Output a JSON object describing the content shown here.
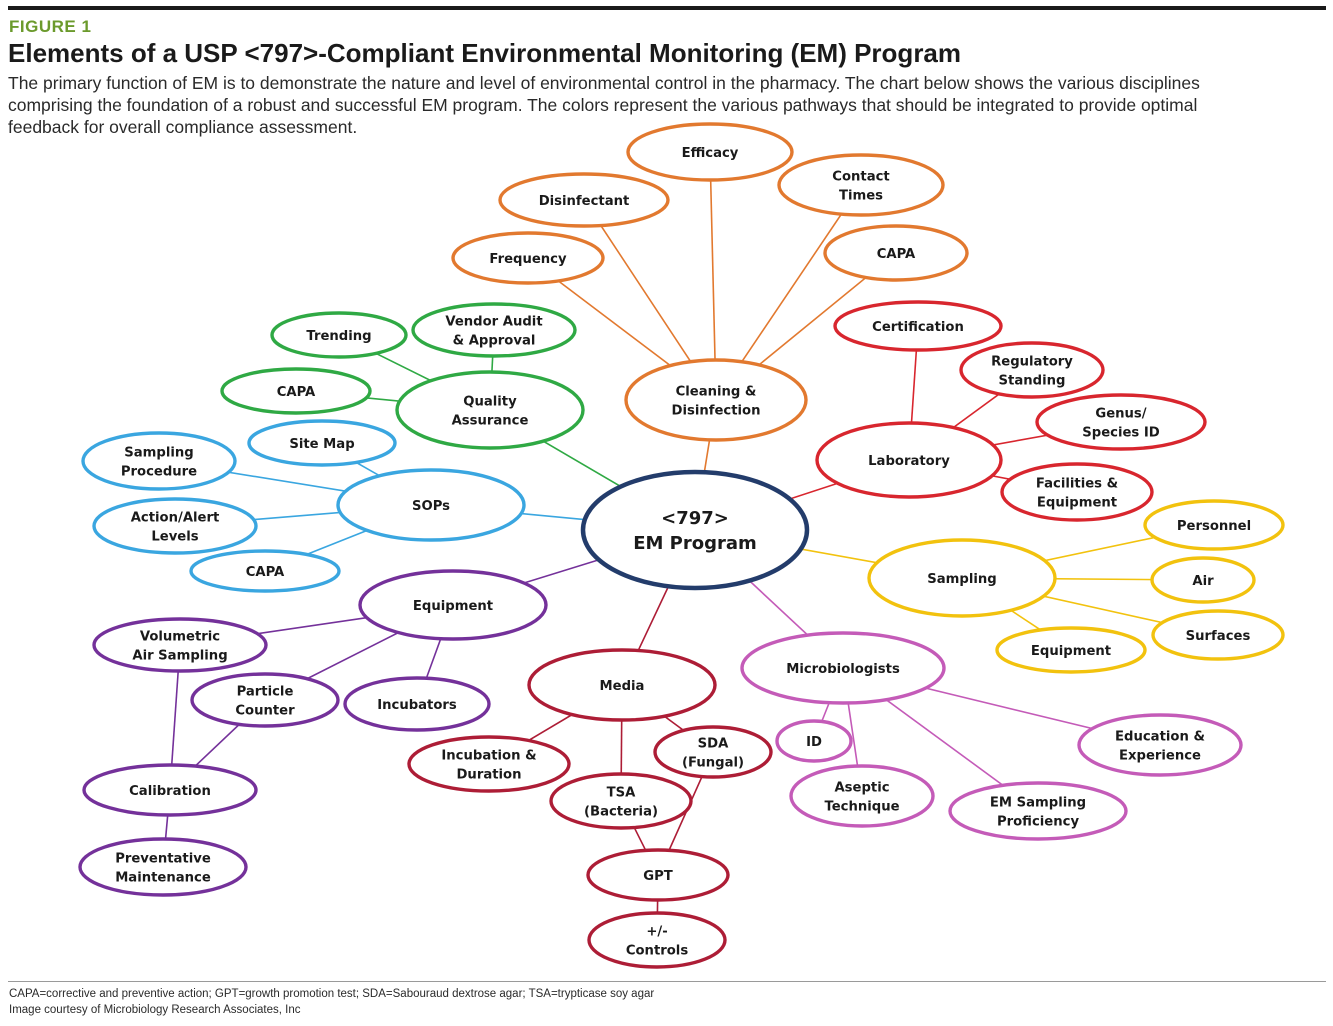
{
  "header": {
    "figure_label": "FIGURE 1",
    "title": "Elements of a USP <797>-Compliant Environmental Monitoring (EM) Program",
    "description": [
      "The primary function of EM is to demonstrate the nature and level of environmental control in the pharmacy. The chart below shows the various disciplines",
      "comprising the foundation of a robust and successful EM program. The colors represent the various pathways that should be integrated to provide optimal",
      "feedback for overall compliance assessment."
    ]
  },
  "colors": {
    "center": "#233c6b",
    "cleaning": "#e2792f",
    "laboratory": "#d8262e",
    "sampling": "#f2c20e",
    "microbiologists": "#c45bb8",
    "media": "#ad1d36",
    "equipment": "#74319a",
    "sops": "#3aa6e0",
    "quality": "#2fa944"
  },
  "diagram": {
    "nodes": [
      {
        "id": "center",
        "lines": [
          "<797>",
          "EM Program"
        ],
        "group": "center"
      },
      {
        "id": "cleaning",
        "lines": [
          "Cleaning &",
          "Disinfection"
        ],
        "group": "cleaning"
      },
      {
        "id": "efficacy",
        "lines": [
          "Efficacy"
        ],
        "group": "cleaning"
      },
      {
        "id": "disinfectant",
        "lines": [
          "Disinfectant"
        ],
        "group": "cleaning"
      },
      {
        "id": "contact-times",
        "lines": [
          "Contact",
          "Times"
        ],
        "group": "cleaning"
      },
      {
        "id": "frequency",
        "lines": [
          "Frequency"
        ],
        "group": "cleaning"
      },
      {
        "id": "capa-cleaning",
        "lines": [
          "CAPA"
        ],
        "group": "cleaning"
      },
      {
        "id": "laboratory",
        "lines": [
          "Laboratory"
        ],
        "group": "laboratory"
      },
      {
        "id": "certification",
        "lines": [
          "Certification"
        ],
        "group": "laboratory"
      },
      {
        "id": "regulatory-standing",
        "lines": [
          "Regulatory",
          "Standing"
        ],
        "group": "laboratory"
      },
      {
        "id": "genus-species-id",
        "lines": [
          "Genus/",
          "Species ID"
        ],
        "group": "laboratory"
      },
      {
        "id": "facilities-equipment",
        "lines": [
          "Facilities &",
          "Equipment"
        ],
        "group": "laboratory"
      },
      {
        "id": "sampling",
        "lines": [
          "Sampling"
        ],
        "group": "sampling"
      },
      {
        "id": "personnel",
        "lines": [
          "Personnel"
        ],
        "group": "sampling"
      },
      {
        "id": "air",
        "lines": [
          "Air"
        ],
        "group": "sampling"
      },
      {
        "id": "surfaces",
        "lines": [
          "Surfaces"
        ],
        "group": "sampling"
      },
      {
        "id": "equipment-sampling",
        "lines": [
          "Equipment"
        ],
        "group": "sampling"
      },
      {
        "id": "microbiologists",
        "lines": [
          "Microbiologists"
        ],
        "group": "microbiologists"
      },
      {
        "id": "id",
        "lines": [
          "ID"
        ],
        "group": "microbiologists"
      },
      {
        "id": "aseptic-technique",
        "lines": [
          "Aseptic",
          "Technique"
        ],
        "group": "microbiologists"
      },
      {
        "id": "em-sampling-proficiency",
        "lines": [
          "EM Sampling",
          "Proficiency"
        ],
        "group": "microbiologists"
      },
      {
        "id": "education-experience",
        "lines": [
          "Education &",
          "Experience"
        ],
        "group": "microbiologists"
      },
      {
        "id": "media",
        "lines": [
          "Media"
        ],
        "group": "media"
      },
      {
        "id": "incubation-duration",
        "lines": [
          "Incubation &",
          "Duration"
        ],
        "group": "media"
      },
      {
        "id": "tsa",
        "lines": [
          "TSA",
          "(Bacteria)"
        ],
        "group": "media"
      },
      {
        "id": "sda",
        "lines": [
          "SDA",
          "(Fungal)"
        ],
        "group": "media"
      },
      {
        "id": "gpt",
        "lines": [
          "GPT"
        ],
        "group": "media"
      },
      {
        "id": "controls",
        "lines": [
          "+/-",
          "Controls"
        ],
        "group": "media"
      },
      {
        "id": "equipment",
        "lines": [
          "Equipment"
        ],
        "group": "equipment"
      },
      {
        "id": "volumetric-air-sampling",
        "lines": [
          "Volumetric",
          "Air Sampling"
        ],
        "group": "equipment"
      },
      {
        "id": "particle-counter",
        "lines": [
          "Particle",
          "Counter"
        ],
        "group": "equipment"
      },
      {
        "id": "incubators",
        "lines": [
          "Incubators"
        ],
        "group": "equipment"
      },
      {
        "id": "calibration",
        "lines": [
          "Calibration"
        ],
        "group": "equipment"
      },
      {
        "id": "preventative-maintenance",
        "lines": [
          "Preventative",
          "Maintenance"
        ],
        "group": "equipment"
      },
      {
        "id": "sops",
        "lines": [
          "SOPs"
        ],
        "group": "sops"
      },
      {
        "id": "site-map",
        "lines": [
          "Site Map"
        ],
        "group": "sops"
      },
      {
        "id": "sampling-procedure",
        "lines": [
          "Sampling",
          "Procedure"
        ],
        "group": "sops"
      },
      {
        "id": "action-alert-levels",
        "lines": [
          "Action/Alert",
          "Levels"
        ],
        "group": "sops"
      },
      {
        "id": "capa-sops",
        "lines": [
          "CAPA"
        ],
        "group": "sops"
      },
      {
        "id": "quality-assurance",
        "lines": [
          "Quality",
          "Assurance"
        ],
        "group": "quality"
      },
      {
        "id": "trending",
        "lines": [
          "Trending"
        ],
        "group": "quality"
      },
      {
        "id": "vendor-audit",
        "lines": [
          "Vendor Audit",
          "& Approval"
        ],
        "group": "quality"
      },
      {
        "id": "capa-quality",
        "lines": [
          "CAPA"
        ],
        "group": "quality"
      }
    ],
    "edges": [
      {
        "from": "center",
        "to": "cleaning",
        "group": "cleaning"
      },
      {
        "from": "cleaning",
        "to": "efficacy",
        "group": "cleaning"
      },
      {
        "from": "cleaning",
        "to": "disinfectant",
        "group": "cleaning"
      },
      {
        "from": "cleaning",
        "to": "contact-times",
        "group": "cleaning"
      },
      {
        "from": "cleaning",
        "to": "frequency",
        "group": "cleaning"
      },
      {
        "from": "cleaning",
        "to": "capa-cleaning",
        "group": "cleaning"
      },
      {
        "from": "center",
        "to": "laboratory",
        "group": "laboratory"
      },
      {
        "from": "laboratory",
        "to": "certification",
        "group": "laboratory"
      },
      {
        "from": "laboratory",
        "to": "regulatory-standing",
        "group": "laboratory"
      },
      {
        "from": "laboratory",
        "to": "genus-species-id",
        "group": "laboratory"
      },
      {
        "from": "laboratory",
        "to": "facilities-equipment",
        "group": "laboratory"
      },
      {
        "from": "center",
        "to": "sampling",
        "group": "sampling"
      },
      {
        "from": "sampling",
        "to": "personnel",
        "group": "sampling"
      },
      {
        "from": "sampling",
        "to": "air",
        "group": "sampling"
      },
      {
        "from": "sampling",
        "to": "surfaces",
        "group": "sampling"
      },
      {
        "from": "sampling",
        "to": "equipment-sampling",
        "group": "sampling"
      },
      {
        "from": "center",
        "to": "microbiologists",
        "group": "microbiologists"
      },
      {
        "from": "microbiologists",
        "to": "id",
        "group": "microbiologists"
      },
      {
        "from": "microbiologists",
        "to": "aseptic-technique",
        "group": "microbiologists"
      },
      {
        "from": "microbiologists",
        "to": "em-sampling-proficiency",
        "group": "microbiologists"
      },
      {
        "from": "microbiologists",
        "to": "education-experience",
        "group": "microbiologists"
      },
      {
        "from": "center",
        "to": "media",
        "group": "media"
      },
      {
        "from": "media",
        "to": "incubation-duration",
        "group": "media"
      },
      {
        "from": "media",
        "to": "tsa",
        "group": "media"
      },
      {
        "from": "media",
        "to": "sda",
        "group": "media"
      },
      {
        "from": "tsa",
        "to": "gpt",
        "group": "media"
      },
      {
        "from": "sda",
        "to": "gpt",
        "group": "media"
      },
      {
        "from": "gpt",
        "to": "controls",
        "group": "media"
      },
      {
        "from": "center",
        "to": "equipment",
        "group": "equipment"
      },
      {
        "from": "equipment",
        "to": "volumetric-air-sampling",
        "group": "equipment"
      },
      {
        "from": "equipment",
        "to": "particle-counter",
        "group": "equipment"
      },
      {
        "from": "equipment",
        "to": "incubators",
        "group": "equipment"
      },
      {
        "from": "particle-counter",
        "to": "calibration",
        "group": "equipment"
      },
      {
        "from": "volumetric-air-sampling",
        "to": "calibration",
        "group": "equipment"
      },
      {
        "from": "calibration",
        "to": "preventative-maintenance",
        "group": "equipment"
      },
      {
        "from": "center",
        "to": "sops",
        "group": "sops"
      },
      {
        "from": "sops",
        "to": "site-map",
        "group": "sops"
      },
      {
        "from": "sops",
        "to": "sampling-procedure",
        "group": "sops"
      },
      {
        "from": "sops",
        "to": "action-alert-levels",
        "group": "sops"
      },
      {
        "from": "sops",
        "to": "capa-sops",
        "group": "sops"
      },
      {
        "from": "center",
        "to": "quality-assurance",
        "group": "quality"
      },
      {
        "from": "quality-assurance",
        "to": "trending",
        "group": "quality"
      },
      {
        "from": "quality-assurance",
        "to": "vendor-audit",
        "group": "quality"
      },
      {
        "from": "quality-assurance",
        "to": "capa-quality",
        "group": "quality"
      }
    ]
  },
  "footer": {
    "abbreviations": "CAPA=corrective and preventive action; GPT=growth promotion test; SDA=Sabouraud dextrose agar; TSA=trypticase soy agar",
    "credit": "Image courtesy of Microbiology Research Associates, Inc"
  }
}
